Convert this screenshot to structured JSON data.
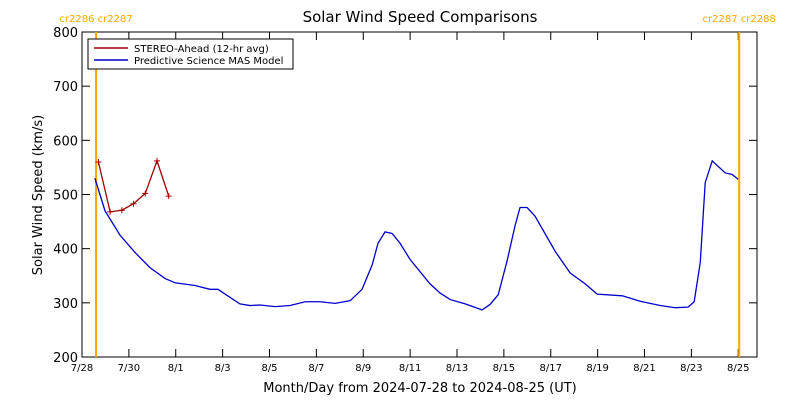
{
  "chart_data": {
    "type": "line",
    "title": "Solar Wind Speed Comparisons",
    "xlabel": "Month/Day from 2024-07-28 to 2024-08-25 (UT)",
    "ylabel": "Solar Wind Speed (km/s)",
    "xlim": [
      0,
      28.8
    ],
    "ylim": [
      200,
      800
    ],
    "xticks": [
      {
        "value": 0,
        "label": "7/28"
      },
      {
        "value": 2,
        "label": "7/30"
      },
      {
        "value": 4,
        "label": "8/1"
      },
      {
        "value": 6,
        "label": "8/3"
      },
      {
        "value": 8,
        "label": "8/5"
      },
      {
        "value": 10,
        "label": "8/7"
      },
      {
        "value": 12,
        "label": "8/9"
      },
      {
        "value": 14,
        "label": "8/11"
      },
      {
        "value": 16,
        "label": "8/13"
      },
      {
        "value": 18,
        "label": "8/15"
      },
      {
        "value": 20,
        "label": "8/17"
      },
      {
        "value": 22,
        "label": "8/19"
      },
      {
        "value": 24,
        "label": "8/21"
      },
      {
        "value": 26,
        "label": "8/23"
      },
      {
        "value": 28,
        "label": "8/25"
      }
    ],
    "yticks": [
      200,
      300,
      400,
      500,
      600,
      700,
      800
    ],
    "legend": "top-left",
    "markers": [
      {
        "x": 0.6,
        "label": "cr2286 cr2287",
        "color": "#ffa500"
      },
      {
        "x": 28.04,
        "label": "cr2287 cr2288",
        "color": "#ffa500"
      }
    ],
    "series": [
      {
        "name": "STEREO-Ahead (12-hr avg)",
        "color": "#a00000",
        "marker": "+",
        "x": [
          0.7,
          1.2,
          1.7,
          2.2,
          2.7,
          3.2,
          3.7
        ],
        "values": [
          560,
          468,
          471,
          483,
          502,
          562,
          497
        ]
      },
      {
        "name": "Predictive Science MAS Model",
        "color": "#0000cc",
        "x": [
          0.55,
          0.98,
          1.62,
          2.26,
          2.9,
          3.54,
          3.97,
          4.82,
          5.46,
          5.8,
          6.32,
          6.74,
          7.17,
          7.6,
          8.24,
          8.88,
          9.52,
          10.16,
          10.8,
          11.44,
          11.95,
          12.38,
          12.63,
          12.93,
          13.23,
          13.57,
          14.0,
          14.85,
          15.28,
          15.71,
          16.35,
          17.07,
          17.41,
          17.76,
          18.14,
          18.48,
          18.69,
          18.99,
          19.33,
          20.19,
          20.83,
          21.47,
          21.98,
          23.05,
          23.81,
          24.67,
          25.31,
          25.86,
          26.12,
          26.38,
          26.59,
          26.89,
          27.44,
          27.74,
          28.0
        ],
        "values": [
          530,
          470,
          425,
          393,
          365,
          345,
          337,
          332,
          325,
          325,
          310,
          298,
          295,
          296,
          293,
          295,
          302,
          302,
          299,
          304,
          325,
          370,
          410,
          431,
          428,
          410,
          380,
          335,
          318,
          306,
          298,
          287,
          297,
          315,
          378,
          443,
          476,
          476,
          460,
          395,
          355,
          335,
          316,
          313,
          303,
          295,
          291,
          292,
          302,
          375,
          522,
          562,
          540,
          537,
          528
        ]
      }
    ]
  }
}
